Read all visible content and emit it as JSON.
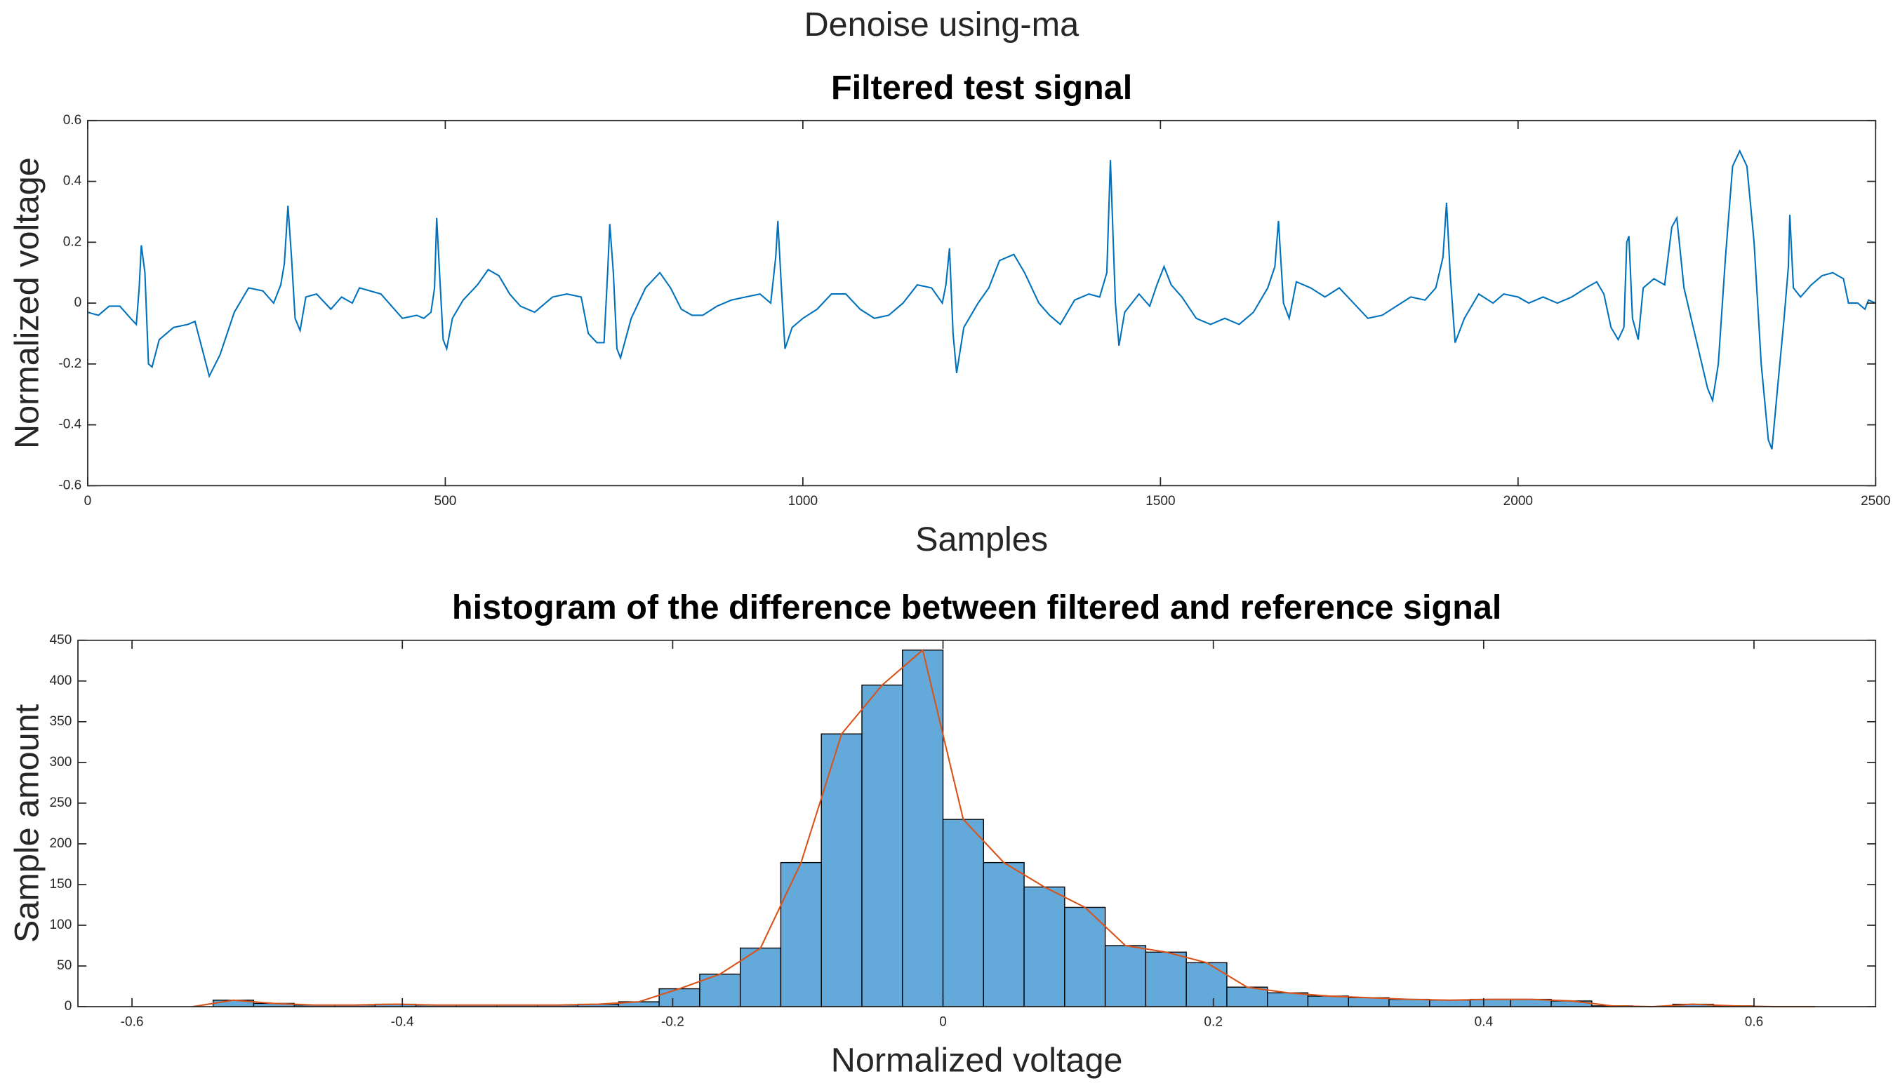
{
  "title": "Denoise using-ma",
  "chart_data": [
    {
      "type": "line",
      "title": "Filtered test signal",
      "xlabel": "Samples",
      "ylabel": "Normalized voltage",
      "color": "#0072BD",
      "xlim": [
        0,
        2500
      ],
      "xticks": [
        0,
        500,
        1000,
        1500,
        2000,
        2500
      ],
      "ylim": [
        -0.6,
        0.6
      ],
      "yticks": [
        -0.6,
        -0.4,
        -0.2,
        0,
        0.2,
        0.4,
        0.6
      ],
      "x": [
        0,
        15,
        30,
        45,
        60,
        68,
        72,
        75,
        80,
        85,
        90,
        100,
        120,
        140,
        150,
        160,
        170,
        185,
        205,
        225,
        245,
        260,
        270,
        275,
        280,
        285,
        290,
        297,
        305,
        320,
        340,
        355,
        370,
        380,
        395,
        410,
        425,
        440,
        460,
        470,
        480,
        485,
        488,
        492,
        497,
        502,
        510,
        525,
        545,
        560,
        575,
        590,
        605,
        625,
        650,
        670,
        690,
        700,
        712,
        722,
        727,
        730,
        735,
        740,
        745,
        760,
        780,
        800,
        815,
        830,
        845,
        860,
        880,
        900,
        920,
        940,
        955,
        962,
        965,
        970,
        975,
        985,
        1000,
        1020,
        1040,
        1060,
        1080,
        1100,
        1120,
        1140,
        1160,
        1180,
        1195,
        1200,
        1205,
        1210,
        1215,
        1225,
        1245,
        1260,
        1275,
        1295,
        1310,
        1330,
        1345,
        1360,
        1380,
        1400,
        1415,
        1425,
        1430,
        1437,
        1442,
        1450,
        1470,
        1485,
        1495,
        1505,
        1515,
        1530,
        1550,
        1570,
        1590,
        1610,
        1630,
        1650,
        1660,
        1665,
        1672,
        1680,
        1690,
        1710,
        1730,
        1750,
        1770,
        1790,
        1810,
        1830,
        1850,
        1870,
        1885,
        1895,
        1900,
        1905,
        1912,
        1925,
        1945,
        1965,
        1980,
        2000,
        2015,
        2035,
        2055,
        2075,
        2095,
        2110,
        2120,
        2130,
        2140,
        2148,
        2152,
        2155,
        2160,
        2168,
        2175,
        2190,
        2205,
        2215,
        2222,
        2232,
        2245,
        2255,
        2265,
        2272,
        2280,
        2290,
        2300,
        2310,
        2320,
        2330,
        2340,
        2350,
        2355,
        2362,
        2372,
        2378,
        2380,
        2385,
        2395,
        2410,
        2425,
        2440,
        2455,
        2462,
        2475,
        2485,
        2490,
        2500
      ],
      "values": [
        -0.03,
        -0.04,
        -0.01,
        -0.01,
        -0.05,
        -0.07,
        0.05,
        0.19,
        0.1,
        -0.2,
        -0.21,
        -0.12,
        -0.08,
        -0.07,
        -0.06,
        -0.15,
        -0.24,
        -0.17,
        -0.03,
        0.05,
        0.04,
        0.0,
        0.06,
        0.13,
        0.32,
        0.15,
        -0.05,
        -0.09,
        0.02,
        0.03,
        -0.02,
        0.02,
        0.0,
        0.05,
        0.04,
        0.03,
        -0.01,
        -0.05,
        -0.04,
        -0.05,
        -0.03,
        0.05,
        0.28,
        0.1,
        -0.12,
        -0.15,
        -0.05,
        0.01,
        0.06,
        0.11,
        0.09,
        0.03,
        -0.01,
        -0.03,
        0.02,
        0.03,
        0.02,
        -0.1,
        -0.13,
        -0.13,
        0.1,
        0.26,
        0.1,
        -0.15,
        -0.18,
        -0.05,
        0.05,
        0.1,
        0.05,
        -0.02,
        -0.04,
        -0.04,
        -0.01,
        0.01,
        0.02,
        0.03,
        0.0,
        0.15,
        0.27,
        0.05,
        -0.15,
        -0.08,
        -0.05,
        -0.02,
        0.03,
        0.03,
        -0.02,
        -0.05,
        -0.04,
        0.0,
        0.06,
        0.05,
        0.0,
        0.06,
        0.18,
        -0.1,
        -0.23,
        -0.08,
        0.0,
        0.05,
        0.14,
        0.16,
        0.1,
        0.0,
        -0.04,
        -0.07,
        0.01,
        0.03,
        0.02,
        0.1,
        0.47,
        0.0,
        -0.14,
        -0.03,
        0.03,
        -0.01,
        0.06,
        0.12,
        0.06,
        0.02,
        -0.05,
        -0.07,
        -0.05,
        -0.07,
        -0.03,
        0.05,
        0.12,
        0.27,
        0.0,
        -0.05,
        0.07,
        0.05,
        0.02,
        0.05,
        0.0,
        -0.05,
        -0.04,
        -0.01,
        0.02,
        0.01,
        0.05,
        0.15,
        0.33,
        0.1,
        -0.13,
        -0.05,
        0.03,
        0.0,
        0.03,
        0.02,
        0.0,
        0.02,
        0.0,
        0.02,
        0.05,
        0.07,
        0.03,
        -0.08,
        -0.12,
        -0.08,
        0.2,
        0.22,
        -0.05,
        -0.12,
        0.05,
        0.08,
        0.06,
        0.25,
        0.28,
        0.05,
        -0.08,
        -0.18,
        -0.28,
        -0.32,
        -0.2,
        0.15,
        0.45,
        0.5,
        0.45,
        0.2,
        -0.2,
        -0.45,
        -0.48,
        -0.3,
        -0.05,
        0.12,
        0.29,
        0.05,
        0.02,
        0.06,
        0.09,
        0.1,
        0.08,
        0.0,
        0.0,
        -0.02,
        0.01,
        0.0
      ]
    },
    {
      "type": "histogram",
      "title": "histogram of the difference between filtered and reference signal",
      "xlabel": "Normalized voltage",
      "ylabel": "Sample amount",
      "color": "#63A9DA",
      "edge_color": "#000000",
      "line_color": "#D95319",
      "xlim": [
        -0.64,
        0.69
      ],
      "xticks": [
        -0.6,
        -0.4,
        -0.2,
        0,
        0.2,
        0.4,
        0.6
      ],
      "ylim": [
        0,
        450
      ],
      "yticks": [
        0,
        50,
        100,
        150,
        200,
        250,
        300,
        350,
        400,
        450
      ],
      "bins": [
        -0.57,
        -0.54,
        -0.51,
        -0.48,
        -0.45,
        -0.42,
        -0.39,
        -0.36,
        -0.33,
        -0.3,
        -0.27,
        -0.24,
        -0.21,
        -0.18,
        -0.15,
        -0.12,
        -0.09,
        -0.06,
        -0.03,
        0,
        0.03,
        0.06,
        0.09,
        0.12,
        0.15,
        0.18,
        0.21,
        0.24,
        0.27,
        0.3,
        0.33,
        0.36,
        0.39,
        0.42,
        0.45,
        0.48,
        0.51,
        0.54,
        0.57,
        0.6,
        0.63,
        0.66
      ],
      "values": [
        0,
        8,
        4,
        2,
        2,
        3,
        2,
        2,
        2,
        2,
        3,
        6,
        22,
        40,
        72,
        177,
        335,
        395,
        438,
        230,
        177,
        147,
        122,
        75,
        67,
        54,
        24,
        17,
        13,
        11,
        9,
        8,
        9,
        9,
        7,
        1,
        0,
        3,
        1,
        0,
        0
      ]
    }
  ]
}
